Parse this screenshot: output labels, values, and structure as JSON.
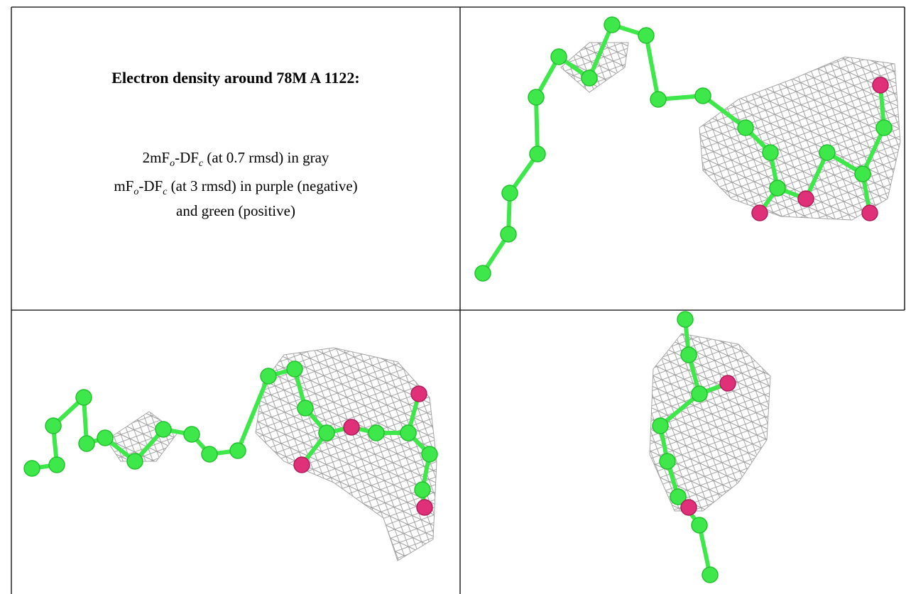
{
  "caption": {
    "title": "Electron density around 78M A 1122:",
    "lines": [
      [
        "2mF",
        "o",
        "-DF",
        "c",
        " (at 0.7 rmsd) in gray"
      ],
      [
        "mF",
        "o",
        "-DF",
        "c",
        " (at 3 rmsd) in purple (negative)"
      ],
      [
        "and green (positive)"
      ]
    ]
  }
}
